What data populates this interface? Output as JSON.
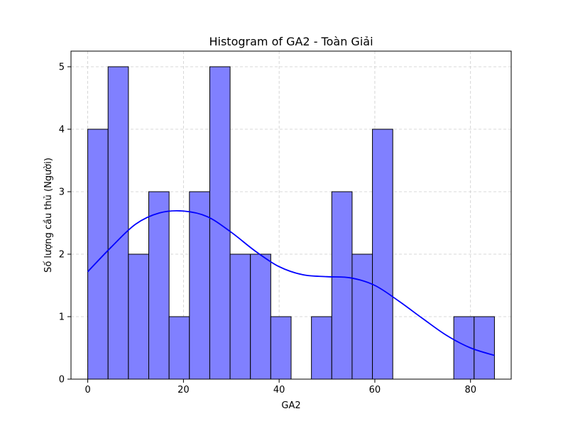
{
  "chart_data": {
    "type": "bar",
    "subtype": "histogram",
    "title": "Histogram of GA2 - Toàn Giải",
    "xlabel": "GA2",
    "ylabel": "Số lượng cầu thủ (Người)",
    "xlim": [
      -3.5,
      88.5
    ],
    "ylim": [
      0,
      5.25
    ],
    "xticks": [
      0,
      20,
      40,
      60,
      80
    ],
    "yticks": [
      0,
      1,
      2,
      3,
      4,
      5
    ],
    "grid": true,
    "bin_edges": [
      0,
      4.25,
      8.5,
      12.75,
      17,
      21.25,
      25.5,
      29.75,
      34,
      38.25,
      42.5,
      46.75,
      51,
      55.25,
      59.5,
      63.75,
      68,
      72.25,
      76.5,
      80.75,
      85
    ],
    "values": [
      4,
      5,
      2,
      3,
      1,
      3,
      5,
      2,
      2,
      1,
      0,
      1,
      3,
      2,
      4,
      0,
      0,
      0,
      1,
      1
    ],
    "bar_color": "#8080ff",
    "bar_edge_color": "#000000",
    "kde": {
      "color": "#0000ff",
      "x": [
        0,
        5,
        10,
        15,
        20,
        25,
        30,
        35,
        40,
        45,
        50,
        55,
        60,
        65,
        70,
        75,
        80,
        85
      ],
      "y": [
        1.72,
        2.12,
        2.48,
        2.66,
        2.69,
        2.6,
        2.35,
        2.05,
        1.8,
        1.67,
        1.64,
        1.62,
        1.5,
        1.25,
        0.97,
        0.7,
        0.5,
        0.38
      ]
    }
  }
}
